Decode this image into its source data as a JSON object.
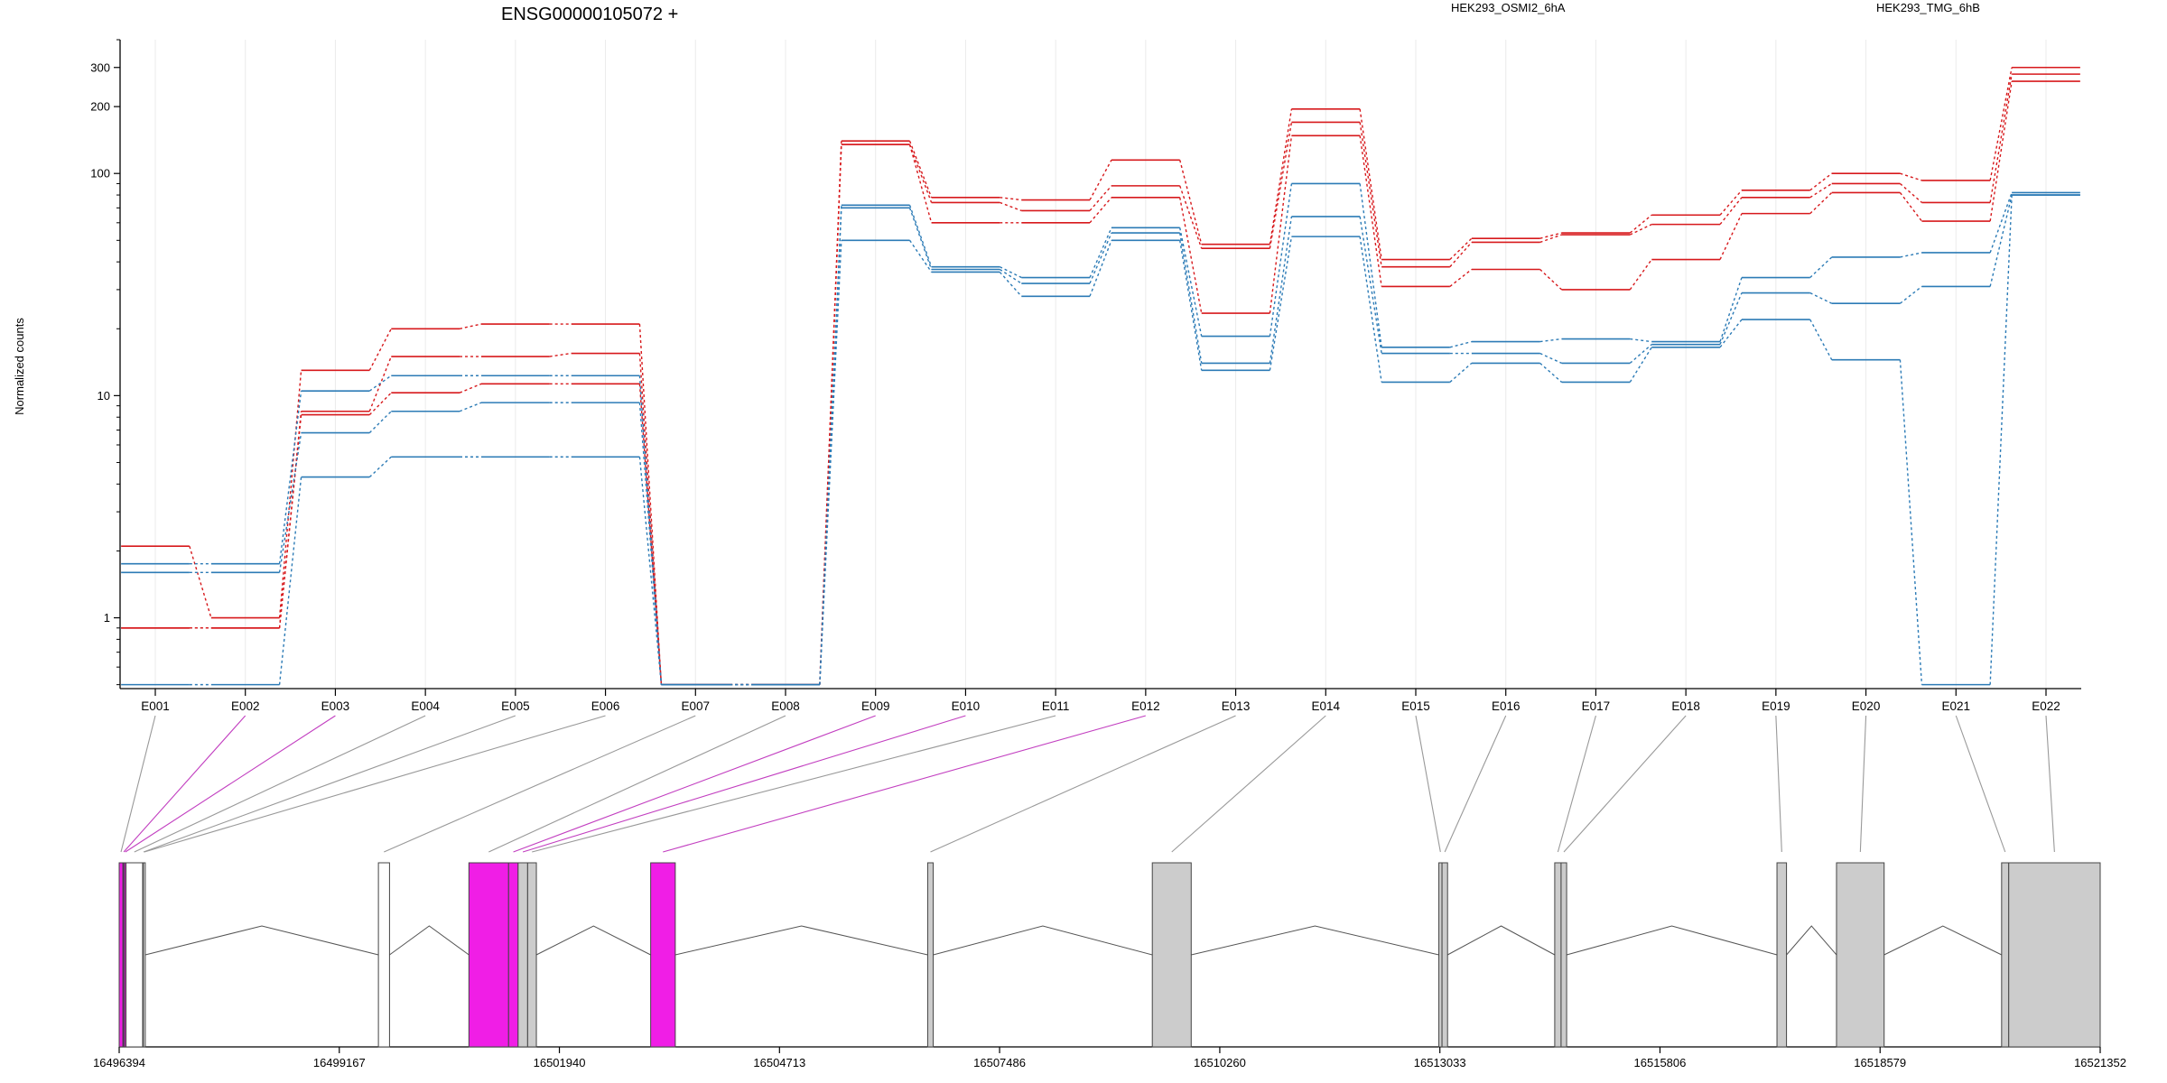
{
  "chart_data": {
    "type": "line",
    "title": "ENSG00000105072 +",
    "ylabel": "Normalized counts",
    "xlabel": "",
    "yscale": "log",
    "ylim": [
      0.48,
      400
    ],
    "y_ticks": [
      1,
      10,
      100,
      200,
      300
    ],
    "grid": "vertical-at-exons",
    "legend_placement": "top-right",
    "categories": [
      "E001",
      "E002",
      "E003",
      "E004",
      "E005",
      "E006",
      "E007",
      "E008",
      "E009",
      "E010",
      "E011",
      "E012",
      "E013",
      "E014",
      "E015",
      "E016",
      "E017",
      "E018",
      "E019",
      "E020",
      "E021",
      "E022"
    ],
    "legend": [
      {
        "name": "HEK293_OSMI2_6hA",
        "color": "#d7191c"
      },
      {
        "name": "HEK293_TMG_6hB",
        "color": "#2c7bb6"
      }
    ],
    "series": [
      {
        "group": "HEK293_OSMI2_6hA",
        "color": "#d7191c",
        "values": [
          2.1,
          1.0,
          13,
          20,
          21,
          21,
          0.5,
          0.5,
          140,
          78,
          76,
          115,
          48,
          195,
          41,
          51,
          54,
          65,
          84,
          100,
          93,
          300
        ]
      },
      {
        "group": "HEK293_OSMI2_6hA",
        "color": "#d7191c",
        "values": [
          0.9,
          0.9,
          8.5,
          15,
          15,
          15.5,
          0.5,
          0.5,
          135,
          74,
          68,
          88,
          46,
          170,
          38,
          49,
          53,
          59,
          78,
          90,
          74,
          280
        ]
      },
      {
        "group": "HEK293_OSMI2_6hA",
        "color": "#d7191c",
        "values": [
          0.9,
          0.9,
          8.2,
          10.3,
          11.3,
          11.3,
          0.5,
          0.5,
          135,
          60,
          60,
          78,
          23.5,
          148,
          31,
          37,
          30,
          41,
          66,
          82,
          61,
          260
        ]
      },
      {
        "group": "HEK293_TMG_6hB",
        "color": "#2c7bb6",
        "values": [
          1.75,
          1.75,
          10.5,
          12.3,
          12.3,
          12.3,
          0.5,
          0.5,
          72,
          38,
          34,
          57,
          18.5,
          90,
          16.5,
          17.5,
          18,
          17.5,
          34,
          42,
          44,
          82
        ]
      },
      {
        "group": "HEK293_TMG_6hB",
        "color": "#2c7bb6",
        "values": [
          1.6,
          1.6,
          6.8,
          8.5,
          9.3,
          9.3,
          0.5,
          0.5,
          70,
          37,
          32,
          54,
          14,
          64,
          15.5,
          15.5,
          14,
          17,
          29,
          26,
          31,
          80
        ]
      },
      {
        "group": "HEK293_TMG_6hB",
        "color": "#2c7bb6",
        "values": [
          0.5,
          0.5,
          4.3,
          5.3,
          5.3,
          5.3,
          0.5,
          0.5,
          50,
          36,
          28,
          50,
          13,
          52,
          11.5,
          14,
          11.5,
          16.5,
          22,
          14.5,
          0.5,
          80
        ]
      }
    ],
    "gene_model": {
      "coordinate_ticks": [
        "16496394",
        "16499167",
        "16501940",
        "16504713",
        "16507486",
        "16510260",
        "16513033",
        "16515806",
        "16518579",
        "16521352"
      ],
      "range": [
        16496394,
        16521352
      ],
      "exons": [
        {
          "id": "E001",
          "start": 16496394,
          "end": 16496440,
          "color": "#f01ee6"
        },
        {
          "id": "E002",
          "start": 16496440,
          "end": 16496460,
          "color": "#6b2a7a"
        },
        {
          "id": "E003",
          "start": 16496460,
          "end": 16496480,
          "color": "#f01ee6"
        },
        {
          "id": "E004",
          "start": 16496480,
          "end": 16496690,
          "color": "#ffffff"
        },
        {
          "id": "E005",
          "start": 16496690,
          "end": 16496700,
          "color": "#ffffff"
        },
        {
          "id": "E006",
          "start": 16496700,
          "end": 16496710,
          "color": "#ffffff"
        },
        {
          "id": "E007",
          "start": 16499660,
          "end": 16499800,
          "color": "#ffffff"
        },
        {
          "id": "E008",
          "start": 16500800,
          "end": 16501300,
          "color": "#f01ee6"
        },
        {
          "id": "E009",
          "start": 16501300,
          "end": 16501420,
          "color": "#f01ee6"
        },
        {
          "id": "E010",
          "start": 16501420,
          "end": 16501540,
          "color": "#cccccc"
        },
        {
          "id": "E011",
          "start": 16501540,
          "end": 16501650,
          "color": "#cccccc"
        },
        {
          "id": "E012",
          "start": 16503090,
          "end": 16503400,
          "color": "#f01ee6"
        },
        {
          "id": "E013",
          "start": 16506580,
          "end": 16506650,
          "color": "#cccccc"
        },
        {
          "id": "E014",
          "start": 16509410,
          "end": 16509900,
          "color": "#cccccc"
        },
        {
          "id": "E015",
          "start": 16513020,
          "end": 16513060,
          "color": "#cccccc"
        },
        {
          "id": "E016",
          "start": 16513060,
          "end": 16513130,
          "color": "#cccccc"
        },
        {
          "id": "E017",
          "start": 16514480,
          "end": 16514560,
          "color": "#cccccc"
        },
        {
          "id": "E018",
          "start": 16514560,
          "end": 16514630,
          "color": "#cccccc"
        },
        {
          "id": "E019",
          "start": 16517280,
          "end": 16517400,
          "color": "#cccccc"
        },
        {
          "id": "E020",
          "start": 16518030,
          "end": 16518630,
          "color": "#cccccc"
        },
        {
          "id": "E021",
          "start": 16520110,
          "end": 16520200,
          "color": "#cccccc"
        },
        {
          "id": "E022",
          "start": 16520200,
          "end": 16521352,
          "color": "#cccccc"
        }
      ],
      "connector_colors": [
        "#999999",
        "#c23fc0",
        "#c23fc0",
        "#999999",
        "#999999",
        "#999999",
        "#999999",
        "#999999",
        "#c23fc0",
        "#c23fc0",
        "#999999",
        "#c23fc0",
        "#999999",
        "#999999",
        "#999999",
        "#999999",
        "#999999",
        "#999999",
        "#999999",
        "#999999",
        "#999999",
        "#999999"
      ]
    }
  }
}
